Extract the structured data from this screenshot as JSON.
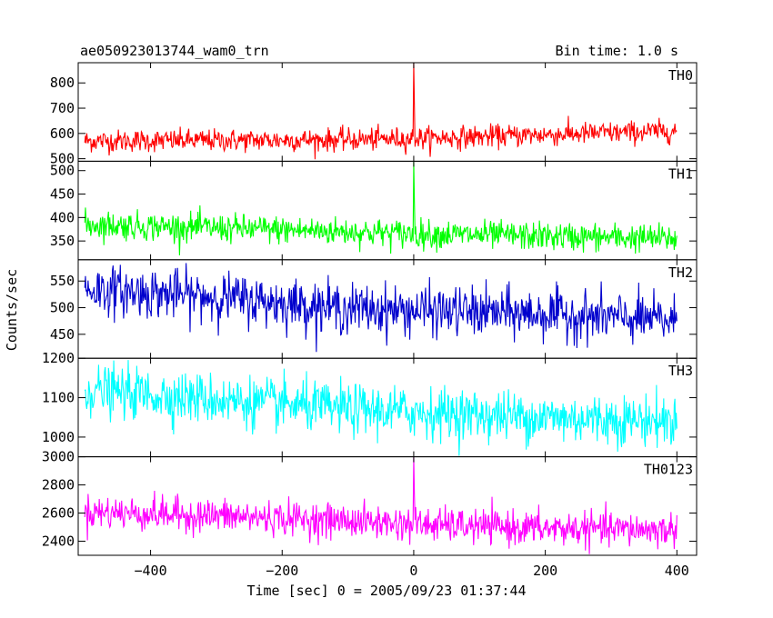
{
  "header": {
    "title": "ae050923013744_wam0_trn",
    "bin_time": "Bin time: 1.0 s"
  },
  "chart_data": {
    "type": "line",
    "xlabel": "Time [sec] 0 = 2005/09/23 01:37:44",
    "ylabel": "Counts/sec",
    "xlim": [
      -510,
      430
    ],
    "xticks": [
      -400,
      -200,
      0,
      200,
      400
    ],
    "xtick_labels": [
      "−400",
      "−200",
      "0",
      "200",
      "400"
    ],
    "x_start": -500,
    "x_end": 400,
    "panels": [
      {
        "name": "TH0",
        "color": "#ff0000",
        "ylim": [
          490,
          880
        ],
        "yticks": [
          500,
          600,
          700,
          800
        ],
        "ytick_labels": [
          "500",
          "600",
          "700",
          "800"
        ],
        "trend": [
          [
            -500,
            570
          ],
          [
            -100,
            575
          ],
          [
            0,
            580
          ],
          [
            400,
            610
          ]
        ],
        "noise_sd": 22,
        "spike": {
          "x": 0,
          "y": 880
        }
      },
      {
        "name": "TH1",
        "color": "#00ff00",
        "ylim": [
          310,
          520
        ],
        "yticks": [
          350,
          400,
          450,
          500
        ],
        "ytick_labels": [
          "350",
          "400",
          "450",
          "500"
        ],
        "trend": [
          [
            -500,
            385
          ],
          [
            -100,
            370
          ],
          [
            0,
            365
          ],
          [
            400,
            355
          ]
        ],
        "noise_sd": 15,
        "spike": {
          "x": 0,
          "y": 520
        }
      },
      {
        "name": "TH2",
        "color": "#0000cd",
        "ylim": [
          405,
          590
        ],
        "yticks": [
          450,
          500,
          550
        ],
        "ytick_labels": [
          "450",
          "500",
          "550"
        ],
        "trend": [
          [
            -500,
            535
          ],
          [
            -300,
            520
          ],
          [
            -100,
            498
          ],
          [
            200,
            488
          ],
          [
            400,
            475
          ]
        ],
        "noise_sd": 23,
        "spike": null
      },
      {
        "name": "TH3",
        "color": "#00ffff",
        "ylim": [
          950,
          1200
        ],
        "yticks": [
          1000,
          1100,
          1200
        ],
        "ytick_labels": [
          "1000",
          "1100",
          "1200"
        ],
        "trend": [
          [
            -500,
            1120
          ],
          [
            -300,
            1095
          ],
          [
            -100,
            1070
          ],
          [
            200,
            1050
          ],
          [
            400,
            1040
          ]
        ],
        "noise_sd": 32,
        "spike": null
      },
      {
        "name": "TH0123",
        "color": "#ff00ff",
        "ylim": [
          2300,
          3000
        ],
        "yticks": [
          2400,
          2600,
          2800,
          3000
        ],
        "ytick_labels": [
          "2400",
          "2600",
          "2800",
          "3000"
        ],
        "trend": [
          [
            -500,
            2610
          ],
          [
            -300,
            2580
          ],
          [
            -100,
            2545
          ],
          [
            0,
            2520
          ],
          [
            200,
            2490
          ],
          [
            400,
            2480
          ]
        ],
        "noise_sd": 60,
        "spike": {
          "x": 0,
          "y": 3000
        }
      }
    ]
  }
}
